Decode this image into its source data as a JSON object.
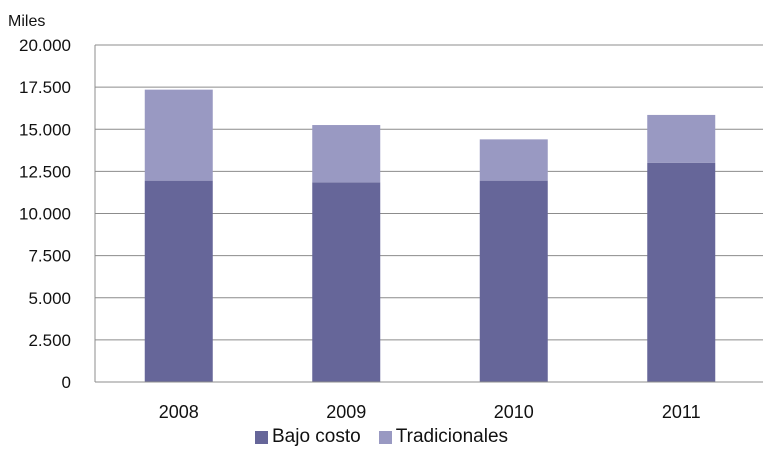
{
  "chart_data": {
    "type": "bar",
    "stacked": true,
    "title": "",
    "unit_label": "Miles",
    "xlabel": "",
    "ylabel": "",
    "categories": [
      "2008",
      "2009",
      "2010",
      "2011"
    ],
    "series": [
      {
        "name": "Bajo costo",
        "color": "#666699",
        "values": [
          11950,
          11850,
          11950,
          13000
        ]
      },
      {
        "name": "Tradicionales",
        "color": "#9999C2",
        "values": [
          5400,
          3400,
          2450,
          2850
        ]
      }
    ],
    "ylim": [
      0,
      20000
    ],
    "yticks": [
      0,
      2500,
      5000,
      7500,
      10000,
      12500,
      15000,
      17500,
      20000
    ],
    "ytick_labels": [
      "0",
      "2.500",
      "5.000",
      "7.500",
      "10.000",
      "12.500",
      "15.000",
      "17.500",
      "20.000"
    ],
    "grid": true,
    "legend_position": "bottom"
  }
}
